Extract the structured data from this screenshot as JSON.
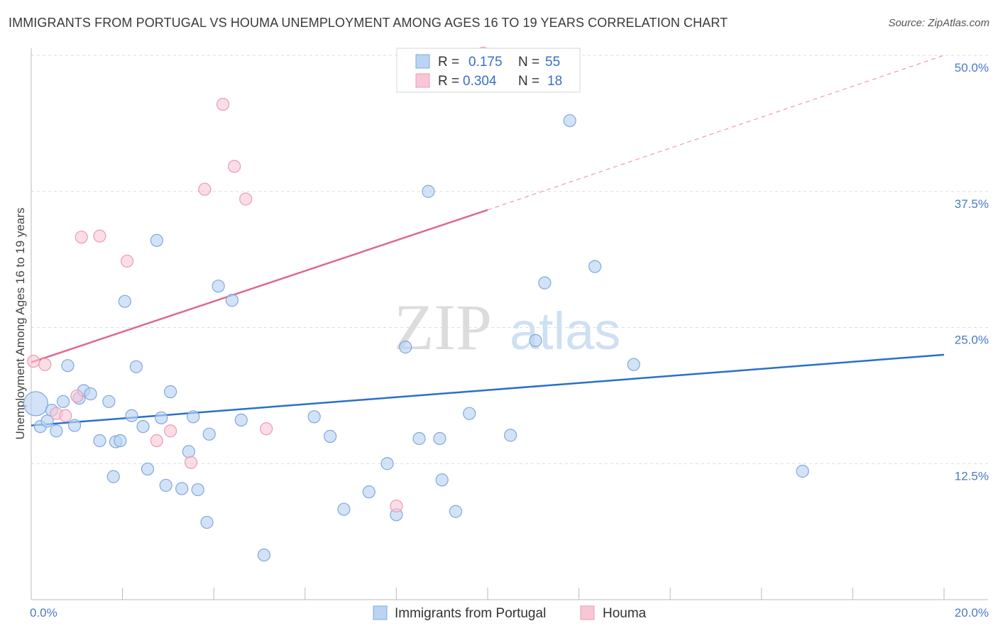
{
  "title": "IMMIGRANTS FROM PORTUGAL VS HOUMA UNEMPLOYMENT AMONG AGES 16 TO 19 YEARS CORRELATION CHART",
  "source": "Source: ZipAtlas.com",
  "watermark": {
    "zip": "ZIP",
    "atlas": "atlas"
  },
  "colors": {
    "blue_fill": "#bcd4f3",
    "blue_stroke": "#7ea8df",
    "blue_line": "#2a6fcc",
    "pink_fill": "#f9c6d5",
    "pink_stroke": "#ec9ab4",
    "pink_line": "#e06690",
    "grid": "#dddddd",
    "tick_text": "#4a7ac7"
  },
  "legend": {
    "r_label": "R =",
    "n_label": "N =",
    "blue": {
      "r": "0.175",
      "n": "55"
    },
    "pink": {
      "r": "0.304",
      "n": "18"
    }
  },
  "chart_data": {
    "type": "scatter",
    "title": "IMMIGRANTS FROM PORTUGAL VS HOUMA UNEMPLOYMENT AMONG AGES 16 TO 19 YEARS CORRELATION CHART",
    "xlabel": "",
    "ylabel": "Unemployment Among Ages 16 to 19 years",
    "xlim": [
      0,
      20
    ],
    "ylim": [
      0,
      50
    ],
    "x_tick_labels": [
      "0.0%",
      "20.0%"
    ],
    "y_ticks": [
      12.5,
      25.0,
      37.5,
      50.0
    ],
    "y_tick_labels": [
      "12.5%",
      "25.0%",
      "37.5%",
      "50.0%"
    ],
    "legend_position": "top-center",
    "series": [
      {
        "name": "Immigrants from Portugal",
        "color": "#bcd4f3",
        "trend": {
          "x": [
            0,
            20
          ],
          "y": [
            16.0,
            22.5
          ]
        },
        "points": [
          [
            0.1,
            18.0
          ],
          [
            0.2,
            15.9
          ],
          [
            0.35,
            16.4
          ],
          [
            0.45,
            17.4
          ],
          [
            0.55,
            15.5
          ],
          [
            0.7,
            18.2
          ],
          [
            0.8,
            21.5
          ],
          [
            0.95,
            16.0
          ],
          [
            1.05,
            18.5
          ],
          [
            1.15,
            19.2
          ],
          [
            1.3,
            18.9
          ],
          [
            1.5,
            14.6
          ],
          [
            1.7,
            18.2
          ],
          [
            1.8,
            11.3
          ],
          [
            1.85,
            14.5
          ],
          [
            1.95,
            14.6
          ],
          [
            2.05,
            27.4
          ],
          [
            2.2,
            16.9
          ],
          [
            2.3,
            21.4
          ],
          [
            2.45,
            15.9
          ],
          [
            2.55,
            12.0
          ],
          [
            2.75,
            33.0
          ],
          [
            2.85,
            16.7
          ],
          [
            2.95,
            10.5
          ],
          [
            3.05,
            19.1
          ],
          [
            3.3,
            10.2
          ],
          [
            3.45,
            13.6
          ],
          [
            3.55,
            16.8
          ],
          [
            3.65,
            10.1
          ],
          [
            3.85,
            7.1
          ],
          [
            3.9,
            15.2
          ],
          [
            4.1,
            28.8
          ],
          [
            4.4,
            27.5
          ],
          [
            4.6,
            16.5
          ],
          [
            5.1,
            4.1
          ],
          [
            6.2,
            16.8
          ],
          [
            6.55,
            15.0
          ],
          [
            6.85,
            8.3
          ],
          [
            7.4,
            9.9
          ],
          [
            7.8,
            12.5
          ],
          [
            8.0,
            7.8
          ],
          [
            8.2,
            23.2
          ],
          [
            8.5,
            14.8
          ],
          [
            8.7,
            37.5
          ],
          [
            8.95,
            14.8
          ],
          [
            9.0,
            11.0
          ],
          [
            9.3,
            8.1
          ],
          [
            9.6,
            17.1
          ],
          [
            10.5,
            15.1
          ],
          [
            11.05,
            23.8
          ],
          [
            11.25,
            29.1
          ],
          [
            11.8,
            44.0
          ],
          [
            12.35,
            30.6
          ],
          [
            13.2,
            21.6
          ],
          [
            16.9,
            11.8
          ]
        ]
      },
      {
        "name": "Houma",
        "color": "#f9c6d5",
        "trend": {
          "x": [
            0,
            10.0
          ],
          "y": [
            21.8,
            35.8
          ]
        },
        "trend_dashed": {
          "x": [
            10.0,
            20
          ],
          "y": [
            35.8,
            50.0
          ]
        },
        "points": [
          [
            0.05,
            21.9
          ],
          [
            0.3,
            21.6
          ],
          [
            0.55,
            17.1
          ],
          [
            0.75,
            16.9
          ],
          [
            1.0,
            18.7
          ],
          [
            1.1,
            33.3
          ],
          [
            1.5,
            33.4
          ],
          [
            2.1,
            31.1
          ],
          [
            2.75,
            14.6
          ],
          [
            3.05,
            15.5
          ],
          [
            3.5,
            12.6
          ],
          [
            3.8,
            37.7
          ],
          [
            4.2,
            45.5
          ],
          [
            4.45,
            39.8
          ],
          [
            4.7,
            36.8
          ],
          [
            5.15,
            15.7
          ],
          [
            8.0,
            8.6
          ],
          [
            9.9,
            50.2
          ]
        ]
      }
    ]
  },
  "bottom_legend": {
    "blue_label": "Immigrants from Portugal",
    "pink_label": "Houma"
  }
}
